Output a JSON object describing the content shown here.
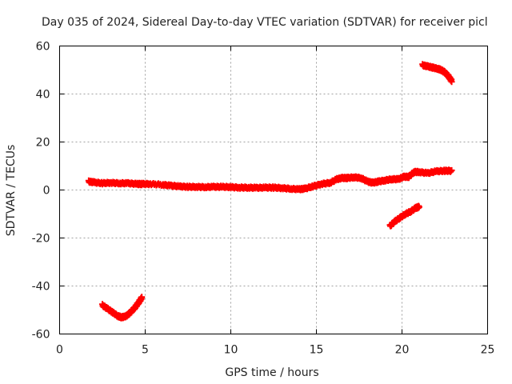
{
  "chart_data": {
    "type": "scatter",
    "title": "Day 035 of 2024, Sidereal Day-to-day VTEC variation (SDTVAR) for receiver picl",
    "xlabel": "GPS time / hours",
    "ylabel": "SDTVAR / TECUs",
    "xlim": [
      0,
      25
    ],
    "ylim": [
      -60,
      60
    ],
    "xticks": [
      0,
      5,
      10,
      15,
      20,
      25
    ],
    "yticks": [
      -60,
      -40,
      -20,
      0,
      20,
      40,
      60
    ],
    "grid": true,
    "marker": "+",
    "color": "#ff0000",
    "series": [
      {
        "name": "main trace",
        "x": [
          1.7,
          2.0,
          2.5,
          3.0,
          3.5,
          4.0,
          4.5,
          4.8,
          5.3,
          6.0,
          6.5,
          7.0,
          7.5,
          8.0,
          8.5,
          9.0,
          9.5,
          10.0,
          10.5,
          11.0,
          11.5,
          12.0,
          12.5,
          13.0,
          13.5,
          14.0,
          14.3,
          14.8,
          15.3,
          15.8,
          16.2,
          16.5,
          16.8,
          17.2,
          17.6,
          18.0,
          18.3,
          18.6,
          19.0,
          19.4,
          19.8,
          20.1,
          20.4,
          20.7,
          21.0,
          21.5,
          22.0,
          22.5,
          22.9
        ],
        "y": [
          3.5,
          3.2,
          2.8,
          3.0,
          2.8,
          2.8,
          2.5,
          2.5,
          2.5,
          2.2,
          1.8,
          1.5,
          1.3,
          1.3,
          1.2,
          1.3,
          1.3,
          1.2,
          1.0,
          1.0,
          0.9,
          1.0,
          1.0,
          0.8,
          0.5,
          0.3,
          0.5,
          1.5,
          2.5,
          3.0,
          4.5,
          5.0,
          5.0,
          5.3,
          5.0,
          3.5,
          3.0,
          3.5,
          4.0,
          4.5,
          4.5,
          5.5,
          5.5,
          7.5,
          7.5,
          7.0,
          7.8,
          8.0,
          8.0
        ]
      },
      {
        "name": "negative arc",
        "x": [
          2.5,
          2.8,
          3.1,
          3.4,
          3.6,
          3.8,
          4.0,
          4.2,
          4.4,
          4.6,
          4.8
        ],
        "y": [
          -48,
          -49.5,
          -51,
          -52.5,
          -53,
          -52.8,
          -52,
          -50.5,
          -49,
          -47,
          -45
        ]
      },
      {
        "name": "negative segment",
        "x": [
          19.3,
          19.6,
          19.9,
          20.2,
          20.5,
          20.8,
          21.0
        ],
        "y": [
          -15,
          -13,
          -11.5,
          -10,
          -9,
          -7.5,
          -7
        ]
      },
      {
        "name": "upper segment",
        "x": [
          21.2,
          21.5,
          21.8,
          22.1,
          22.3,
          22.5,
          22.7,
          22.9
        ],
        "y": [
          52,
          51.5,
          51,
          50.5,
          50,
          49,
          47.5,
          45.5
        ]
      }
    ]
  }
}
